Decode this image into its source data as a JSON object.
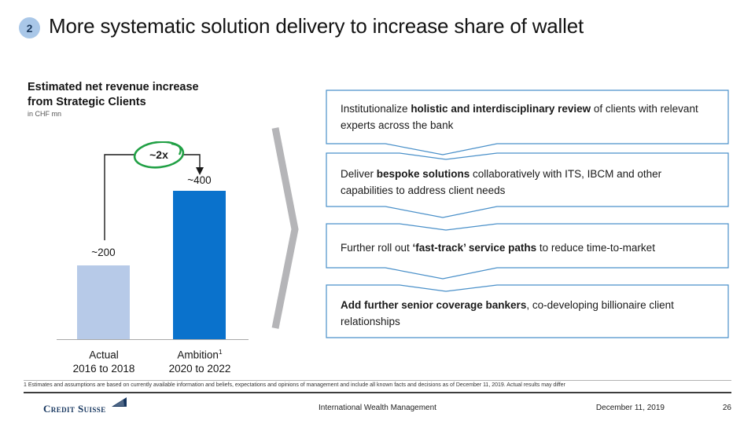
{
  "slide": {
    "badge": "2",
    "title": "More systematic solution delivery to increase share of wallet"
  },
  "chart_data": {
    "type": "bar",
    "title": "Estimated net revenue increase from Strategic Clients",
    "title_line1": "Estimated net revenue increase",
    "title_line2": "from Strategic Clients",
    "unit": "in CHF mn",
    "categories": [
      "Actual 2016 to 2018",
      "Ambition 2020 to 2022"
    ],
    "values": [
      200,
      400
    ],
    "value_labels": [
      "~200",
      "~400"
    ],
    "multiplier_annotation": "~2x",
    "bar_colors": [
      "#b7cae8",
      "#0a72cc"
    ],
    "annotation_color": "#21a045",
    "ylim": [
      0,
      440
    ],
    "cat_labels": [
      {
        "line1": "Actual",
        "sup": "",
        "line2": "2016 to 2018"
      },
      {
        "line1": "Ambition",
        "sup": "1",
        "line2": "2020 to 2022"
      }
    ]
  },
  "boxes": [
    {
      "segments": [
        {
          "t": "Institutionalize ",
          "b": false
        },
        {
          "t": "holistic and interdisciplinary review",
          "b": true
        },
        {
          "t": " of clients with relevant experts across the bank",
          "b": false
        }
      ]
    },
    {
      "segments": [
        {
          "t": "Deliver ",
          "b": false
        },
        {
          "t": "bespoke solutions",
          "b": true
        },
        {
          "t": " collaboratively with ITS, IBCM and other capabilities to address client needs",
          "b": false
        }
      ]
    },
    {
      "segments": [
        {
          "t": "Further roll out ",
          "b": false
        },
        {
          "t": "‘fast-track’ service paths",
          "b": true
        },
        {
          "t": " to reduce time-to-market",
          "b": false
        }
      ]
    },
    {
      "segments": [
        {
          "t": "Add further senior coverage bankers",
          "b": true
        },
        {
          "t": ", co-developing billionaire client relationships",
          "b": false
        }
      ]
    }
  ],
  "footnote": "1 Estimates and assumptions are based on currently available information and beliefs, expectations and opinions of management and include all known facts and decisions as of December 11, 2019. Actual results may differ",
  "footer": {
    "logo": "Credit Suisse",
    "center": "International Wealth Management",
    "date": "December 11, 2019",
    "page": "26"
  },
  "colors": {
    "box_border": "#4a90c9",
    "chevron_gray": "#b5b5b8",
    "badge_bg": "#a9c7e8"
  }
}
